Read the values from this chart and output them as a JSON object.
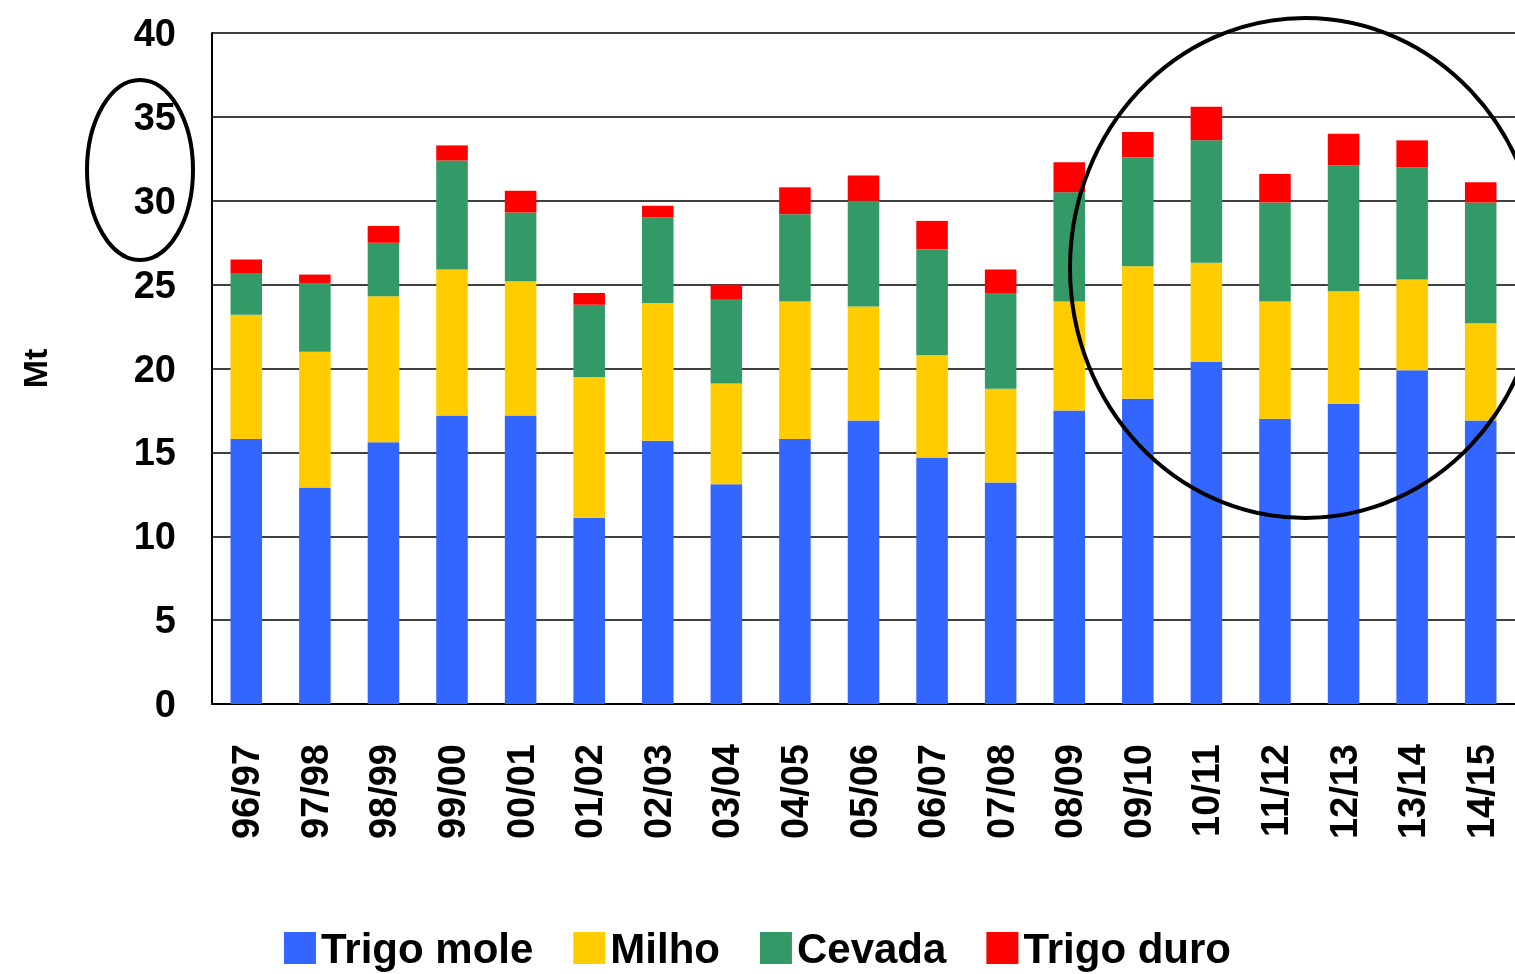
{
  "chart_data": {
    "type": "bar",
    "stacked": true,
    "ylabel": "Mt",
    "categories": [
      "96/97",
      "97/98",
      "98/99",
      "99/00",
      "00/01",
      "01/02",
      "02/03",
      "03/04",
      "04/05",
      "05/06",
      "06/07",
      "07/08",
      "08/09",
      "09/10",
      "10/11",
      "11/12",
      "12/13",
      "13/14",
      "14/15"
    ],
    "series": [
      {
        "name": "Trigo mole",
        "color": "#3366ff",
        "values": [
          15.8,
          12.9,
          15.6,
          17.2,
          17.2,
          11.1,
          15.7,
          13.1,
          15.8,
          16.9,
          14.7,
          13.2,
          17.5,
          18.2,
          20.4,
          17.0,
          17.9,
          19.9,
          16.9
        ]
      },
      {
        "name": "Milho",
        "color": "#ffcc00",
        "values": [
          7.4,
          8.1,
          8.7,
          8.7,
          8.0,
          8.4,
          8.2,
          6.0,
          8.2,
          6.8,
          6.1,
          5.6,
          6.5,
          7.9,
          5.9,
          7.0,
          6.7,
          5.4,
          5.8
        ]
      },
      {
        "name": "Cevada",
        "color": "#339966",
        "values": [
          2.5,
          4.1,
          3.2,
          6.5,
          4.1,
          4.3,
          5.1,
          5.0,
          5.2,
          6.3,
          6.3,
          5.7,
          6.5,
          6.5,
          7.3,
          5.9,
          7.5,
          6.7,
          7.2
        ]
      },
      {
        "name": "Trigo duro",
        "color": "#ff0000",
        "values": [
          0.8,
          0.5,
          1.0,
          0.9,
          1.3,
          0.7,
          0.7,
          0.9,
          1.6,
          1.5,
          1.7,
          1.4,
          1.8,
          1.5,
          2.0,
          1.7,
          1.9,
          1.6,
          1.2
        ]
      }
    ],
    "ylim": [
      0,
      40
    ],
    "yticks": [
      0,
      5,
      10,
      15,
      20,
      25,
      30,
      35,
      40
    ],
    "grid": "y",
    "legend": "bottom"
  }
}
